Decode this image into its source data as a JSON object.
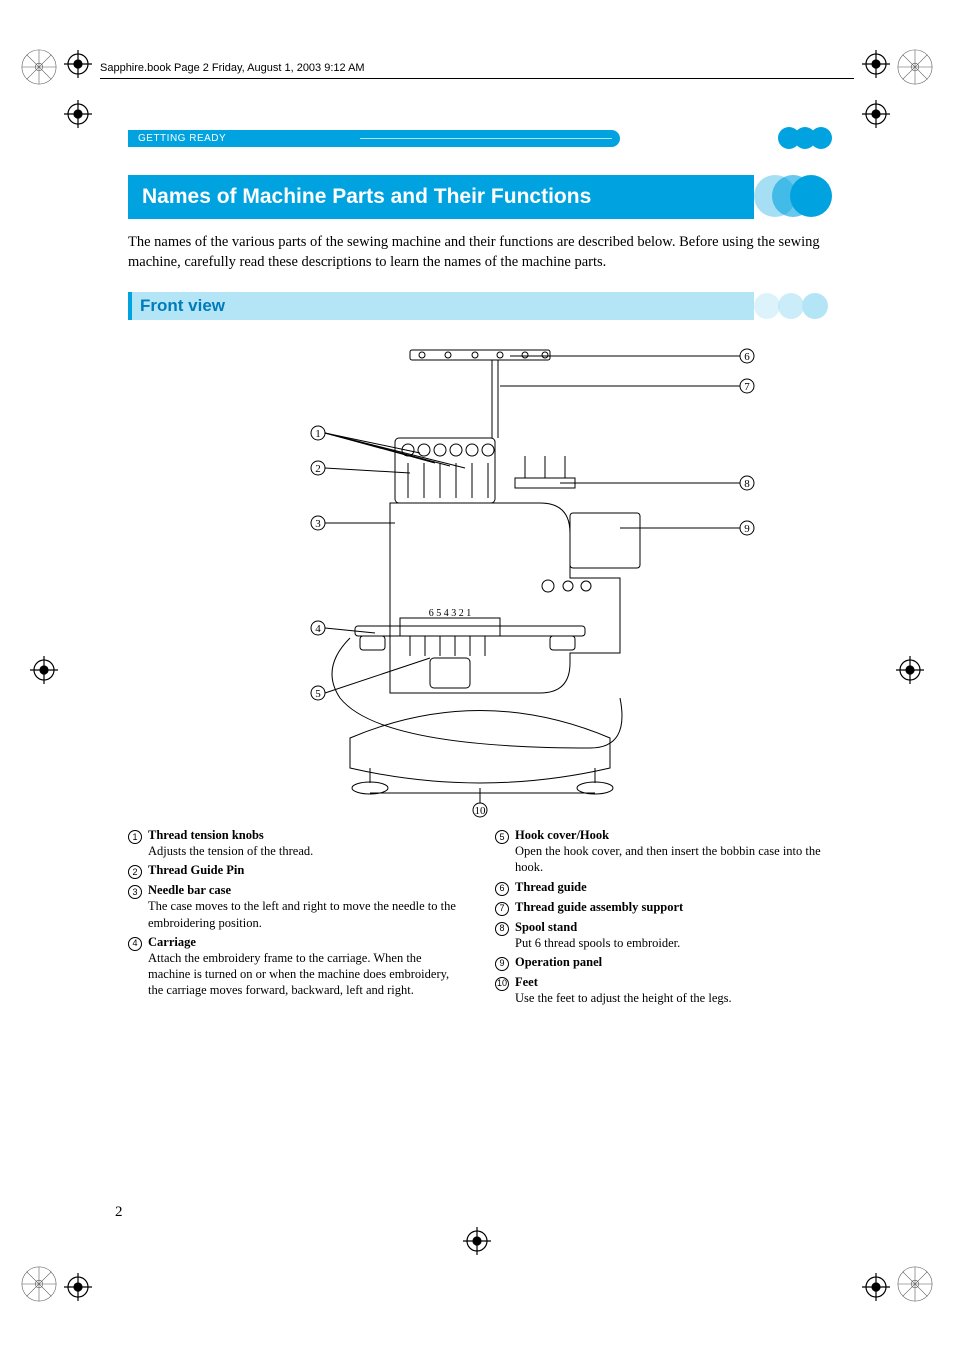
{
  "crop": {
    "rosette_color": "#555555",
    "mark_color": "#000000"
  },
  "book_header": "Sapphire.book  Page 2  Friday, August 1, 2003  9:12 AM",
  "chapter_label": "GETTING READY",
  "title": "Names of Machine Parts and Their Functions",
  "intro": "The names of the various parts of the sewing machine and their functions are described below. Before using the sewing machine, carefully read these descriptions to learn the names of the machine parts.",
  "subheading": "Front view",
  "diagram": {
    "left_labels": [
      "1",
      "2",
      "3",
      "4",
      "5"
    ],
    "right_labels": [
      "6",
      "7",
      "8",
      "9"
    ],
    "bottom_label": "10",
    "needle_numbers": "6 5 4 3 2 1"
  },
  "callouts_left": [
    {
      "n": "1",
      "title": "Thread tension knobs",
      "desc": "Adjusts the tension of the thread."
    },
    {
      "n": "2",
      "title": "Thread Guide Pin",
      "desc": ""
    },
    {
      "n": "3",
      "title": "Needle bar case",
      "desc": "The case moves to the left and right to move the needle to the embroidering position."
    },
    {
      "n": "4",
      "title": "Carriage",
      "desc": "Attach the embroidery frame to the carriage. When the machine is turned on or when the machine does embroidery, the carriage moves forward, backward, left and right."
    }
  ],
  "callouts_right": [
    {
      "n": "5",
      "title": "Hook cover/Hook",
      "desc": "Open the hook cover, and then insert the bobbin case into the hook."
    },
    {
      "n": "6",
      "title": "Thread guide",
      "desc": ""
    },
    {
      "n": "7",
      "title": "Thread guide assembly support",
      "desc": ""
    },
    {
      "n": "8",
      "title": "Spool stand",
      "desc": "Put 6 thread spools to embroider."
    },
    {
      "n": "9",
      "title": "Operation panel",
      "desc": ""
    },
    {
      "n": "10",
      "title": "Feet",
      "desc": "Use the feet to adjust the height of the legs."
    }
  ],
  "page_number": "2",
  "colors": {
    "brand": "#00a3e0",
    "brand_light": "#b3e5f7",
    "brand_text": "#007cb8",
    "text": "#000000",
    "bg": "#ffffff"
  }
}
